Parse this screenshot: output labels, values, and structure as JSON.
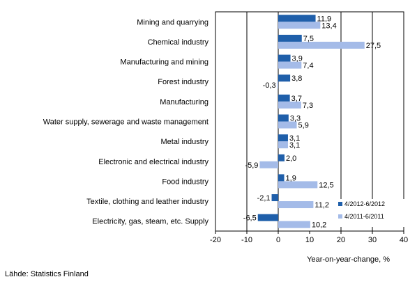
{
  "chart_data": {
    "type": "bar",
    "orientation": "horizontal",
    "categories": [
      "Mining and quarrying",
      "Chemical industry",
      "Manufacturing and mining",
      "Forest industry",
      "Manufacturing",
      "Water supply, sewerage and waste management",
      "Metal industry",
      "Electronic and electrical industry",
      "Food industry",
      "Textile, clothing and leather industry",
      "Electricity, gas, steam, etc. Supply"
    ],
    "series": [
      {
        "name": "4/2012-6/2012",
        "color": "#1f5faa",
        "values": [
          11.9,
          7.5,
          3.9,
          3.8,
          3.7,
          3.3,
          3.1,
          2.0,
          1.9,
          -2.1,
          -6.5
        ],
        "labels": [
          "11,9",
          "7,5",
          "3,9",
          "3,8",
          "3,7",
          "3,3",
          "3,1",
          "2,0",
          "1,9",
          "-2,1",
          "-6,5"
        ]
      },
      {
        "name": "4/2011-6/2011",
        "color": "#a4bbe8",
        "values": [
          13.4,
          27.5,
          7.4,
          -0.3,
          7.3,
          5.9,
          3.1,
          -5.9,
          12.5,
          11.2,
          10.2
        ],
        "labels": [
          "13,4",
          "27,5",
          "7,4",
          "-0,3",
          "7,3",
          "5,9",
          "3,1",
          "-5,9",
          "12,5",
          "11,2",
          "10,2"
        ]
      }
    ],
    "xlim": [
      -20,
      40
    ],
    "xticks": [
      -20,
      -10,
      0,
      10,
      20,
      30,
      40
    ],
    "xlabel": "Year-on-year-change, %",
    "gridlines": [
      -10,
      20,
      30
    ],
    "legend_position": "bottom-right inside"
  },
  "source_note": "Lähde: Statistics Finland"
}
